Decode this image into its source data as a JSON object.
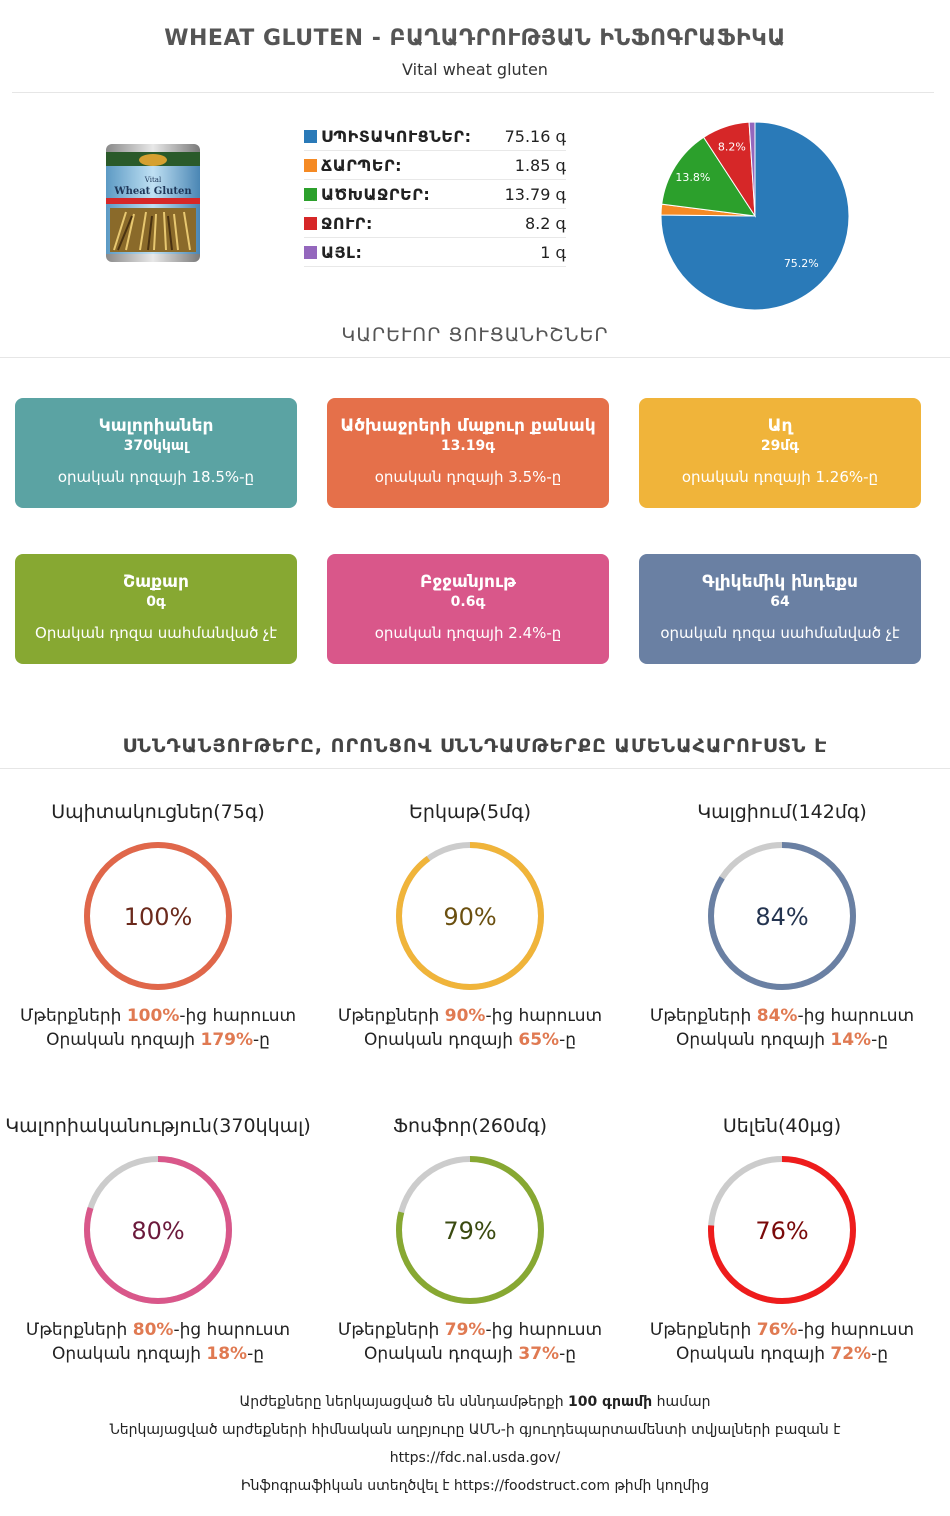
{
  "header": {
    "title": "WHEAT GLUTEN - ԲԱՂԱԴՐՈՒԹՅԱՆ ԻՆՖՈԳՐԱՖԻԿԱ",
    "subtitle": "Vital wheat gluten"
  },
  "product_image": {
    "icon": "vital-wheat-gluten-can",
    "label_lines": [
      "Vital",
      "Wheat Gluten"
    ]
  },
  "composition": {
    "unit": "գ",
    "items": [
      {
        "name": "ՍՊԻՏԱԿՈՒՑՆԵՐ:",
        "value": "75.16 գ",
        "color": "#2a7ab8"
      },
      {
        "name": "ՃԱՐՊԵՐ:",
        "value": "1.85 գ",
        "color": "#f58a24"
      },
      {
        "name": "ԱԾԽԱՋՐԵՐ:",
        "value": "13.79 գ",
        "color": "#2ca02c"
      },
      {
        "name": "ՋՈՒՐ:",
        "value": "8.2 գ",
        "color": "#d62728"
      },
      {
        "name": "ԱՅԼ:",
        "value": "1 գ",
        "color": "#9467bd"
      }
    ]
  },
  "chart_data": {
    "type": "pie",
    "title": "",
    "slices": [
      {
        "label": "",
        "value": 75.16,
        "display": "75.2%",
        "color": "#2a7ab8"
      },
      {
        "label": "",
        "value": 1.85,
        "display": "",
        "color": "#f58a24"
      },
      {
        "label": "",
        "value": 13.79,
        "display": "13.8%",
        "color": "#2ca02c"
      },
      {
        "label": "",
        "value": 8.2,
        "display": "8.2%",
        "color": "#d62728"
      },
      {
        "label": "",
        "value": 1,
        "display": "",
        "color": "#9467bd"
      }
    ],
    "start_angle_deg": 0,
    "direction": "clockwise"
  },
  "key_indicators": {
    "heading": "ԿԱՐԵՒՈՐ ՑՈՒՑԱՆԻՇՆԵՐ",
    "cards": [
      {
        "title": "Կալորիաներ",
        "value": "370կկալ",
        "note": "օրական դոզայի 18.5%-ը",
        "color": "#5ba3a3"
      },
      {
        "title": "Ածխաջրերի մաքուր քանակ",
        "value": "13.19գ",
        "note": "օրական դոզայի 3.5%-ը",
        "color": "#e5704a"
      },
      {
        "title": "Աղ",
        "value": "29մգ",
        "note": "օրական դոզայի 1.26%-ը",
        "color": "#f0b43a"
      },
      {
        "title": "Շաքար",
        "value": "0գ",
        "note": "Օրական դոզա սահմանված չէ",
        "color": "#87a832"
      },
      {
        "title": "Բջջանյութ",
        "value": "0.6գ",
        "note": "օրական դոզայի 2.4%-ը",
        "color": "#d9578a"
      },
      {
        "title": "Գլիկեմիկ ինդեքս",
        "value": "64",
        "note": "օրական դոզա սահմանված չէ",
        "color": "#6a80a3"
      }
    ]
  },
  "nutrients": {
    "heading": "ՍՆՆԴԱՆՅՈՒԹԵՐԸ, ՈՐՈՆՑՈՎ ՍՆՆԴԱՄԹԵՐՔԸ ԱՄԵՆԱՀԱՐՈՒՍՏՆ Է",
    "prefix1": "Մթերքների ",
    "suffix1": "-ից հարուստ",
    "prefix2": "Օրական դոզայի ",
    "suffix2": "-ը",
    "track_color": "#cccccc",
    "items": [
      {
        "title": "Սպիտակուցներ(75գ)",
        "percent": 100,
        "percent_label": "100%",
        "rich": "100%",
        "daily": "179%",
        "color": "#e0674a",
        "text_color": "#6b2a1c"
      },
      {
        "title": "Երկաթ(5մգ)",
        "percent": 90,
        "percent_label": "90%",
        "rich": "90%",
        "daily": "65%",
        "color": "#f0b43a",
        "text_color": "#6b5010"
      },
      {
        "title": "Կալցիում(142մգ)",
        "percent": 84,
        "percent_label": "84%",
        "rich": "84%",
        "daily": "14%",
        "color": "#6a80a3",
        "text_color": "#243450"
      },
      {
        "title": "Կալորիականություն(370կկալ)",
        "percent": 80,
        "percent_label": "80%",
        "rich": "80%",
        "daily": "18%",
        "color": "#d9578a",
        "text_color": "#6b1a3c"
      },
      {
        "title": "Ֆոսֆոր(260մգ)",
        "percent": 79,
        "percent_label": "79%",
        "rich": "79%",
        "daily": "37%",
        "color": "#87a832",
        "text_color": "#3a4a10"
      },
      {
        "title": "Սելեն(40µg)",
        "percent": 76,
        "percent_label": "76%",
        "rich": "76%",
        "daily": "72%",
        "color": "#ee1c1c",
        "text_color": "#7a0a0a"
      }
    ]
  },
  "footer": {
    "line1_pre": "Արժեքները ներկայացված են սննդամթերքի ",
    "line1_bold": "100 գրամի",
    "line1_post": " համար",
    "line2": "Ներկայացված արժեքների հիմնական աղբյուրը ԱՄՆ-ի գյուղդեպարտամենտի տվյալների բազան է",
    "line3": "https://fdc.nal.usda.gov/",
    "line4": "Ինֆոգրաֆիկան ստեղծվել է https://foodstruct.com թիմի կողմից"
  }
}
